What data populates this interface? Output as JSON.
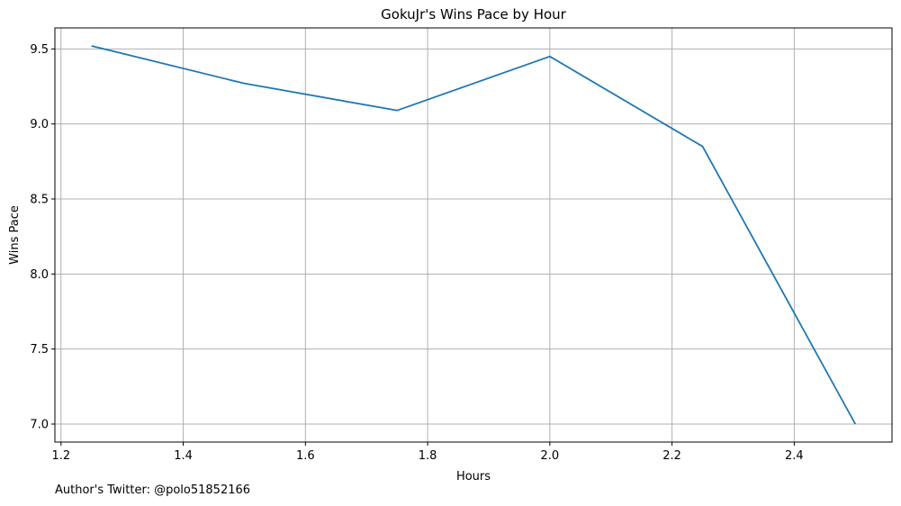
{
  "chart_data": {
    "type": "line",
    "title": "GokuJr's Wins Pace by Hour",
    "xlabel": "Hours",
    "ylabel": "Wins Pace",
    "x": [
      1.25,
      1.5,
      1.75,
      2.0,
      2.25,
      2.5
    ],
    "series": [
      {
        "values": [
          9.52,
          9.27,
          9.09,
          9.45,
          8.85,
          7.0
        ],
        "color": "#1f77b4"
      }
    ],
    "xlim": [
      1.19,
      2.56
    ],
    "ylim": [
      6.88,
      9.64
    ],
    "x_ticks": [
      "1.2",
      "1.4",
      "1.6",
      "1.8",
      "2.0",
      "2.2",
      "2.4"
    ],
    "x_tick_values": [
      1.2,
      1.4,
      1.6,
      1.8,
      2.0,
      2.2,
      2.4
    ],
    "y_ticks": [
      "7.0",
      "7.5",
      "8.0",
      "8.5",
      "9.0",
      "9.5"
    ],
    "y_tick_values": [
      7.0,
      7.5,
      8.0,
      8.5,
      9.0,
      9.5
    ],
    "grid": true,
    "grid_color": "#b0b0b0"
  },
  "footnote": "Author's Twitter: @polo51852166"
}
